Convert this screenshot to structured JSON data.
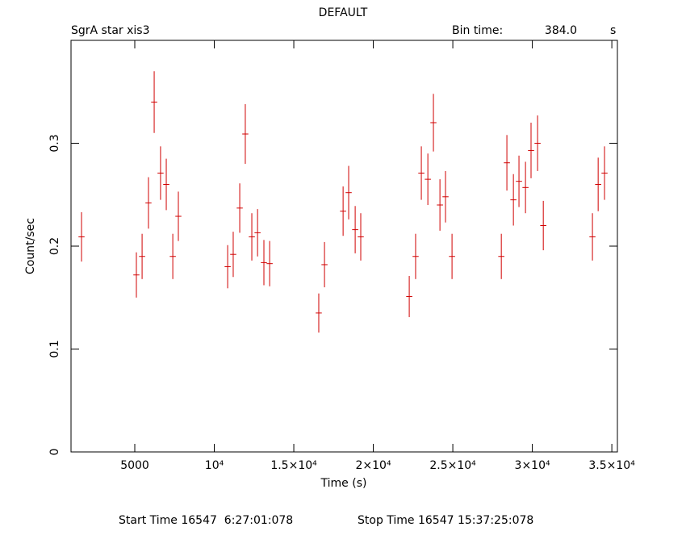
{
  "chart_data": {
    "type": "errorbar",
    "title": "DEFAULT",
    "subtitle": "SgrA star xis3",
    "bin_label": "Bin time:",
    "bin_time": {
      "value": 384,
      "label": "384.0"
    },
    "bin_unit": "s",
    "x_label": "Time (s)",
    "y_label": "Count/sec",
    "footer_start": "Start Time 16547  6:27:01:078",
    "footer_stop": "Stop Time 16547 15:37:25:078",
    "xlim": [
      990,
      35350
    ],
    "ylim": [
      0,
      0.4
    ],
    "xticks": [
      5000,
      {
        "value": 10000,
        "label": "10⁴"
      },
      {
        "value": 15000,
        "label": "1.5×10⁴"
      },
      {
        "value": 20000,
        "label": "2×10⁴"
      },
      {
        "value": 25000,
        "label": "2.5×10⁴"
      },
      {
        "value": 30000,
        "label": "3×10⁴"
      },
      {
        "value": 35000,
        "label": "3.5×10⁴"
      }
    ],
    "yticks": [
      0,
      0.1,
      0.2,
      0.3
    ],
    "series": [
      {
        "color": "#d00000",
        "x": [
          1650,
          5100,
          5460,
          5860,
          6220,
          6620,
          6980,
          7390,
          7740,
          10840,
          11190,
          11600,
          11950,
          12360,
          12720,
          13120,
          13480,
          16570,
          16930,
          18100,
          18450,
          18860,
          19210,
          22260,
          22660,
          23020,
          23430,
          23780,
          24190,
          24540,
          24950,
          28050,
          28400,
          28810,
          29160,
          29570,
          29920,
          30330,
          30690,
          33780,
          34140,
          34540
        ],
        "values": [
          0.209,
          0.172,
          0.19,
          0.242,
          0.34,
          0.271,
          0.26,
          0.19,
          0.229,
          0.18,
          0.192,
          0.237,
          0.309,
          0.209,
          0.213,
          0.184,
          0.183,
          0.135,
          0.182,
          0.234,
          0.252,
          0.216,
          0.209,
          0.151,
          0.19,
          0.271,
          0.265,
          0.32,
          0.24,
          0.248,
          0.19,
          0.19,
          0.281,
          0.245,
          0.263,
          0.257,
          0.293,
          0.3,
          0.22,
          0.209,
          0.26,
          0.271
        ],
        "errors": [
          0.024,
          0.022,
          0.022,
          0.025,
          0.03,
          0.026,
          0.025,
          0.022,
          0.024,
          0.021,
          0.022,
          0.024,
          0.029,
          0.023,
          0.023,
          0.022,
          0.022,
          0.019,
          0.022,
          0.024,
          0.026,
          0.023,
          0.023,
          0.02,
          0.022,
          0.026,
          0.025,
          0.028,
          0.025,
          0.025,
          0.022,
          0.022,
          0.027,
          0.025,
          0.025,
          0.025,
          0.027,
          0.027,
          0.024,
          0.023,
          0.026,
          0.026
        ]
      }
    ]
  }
}
